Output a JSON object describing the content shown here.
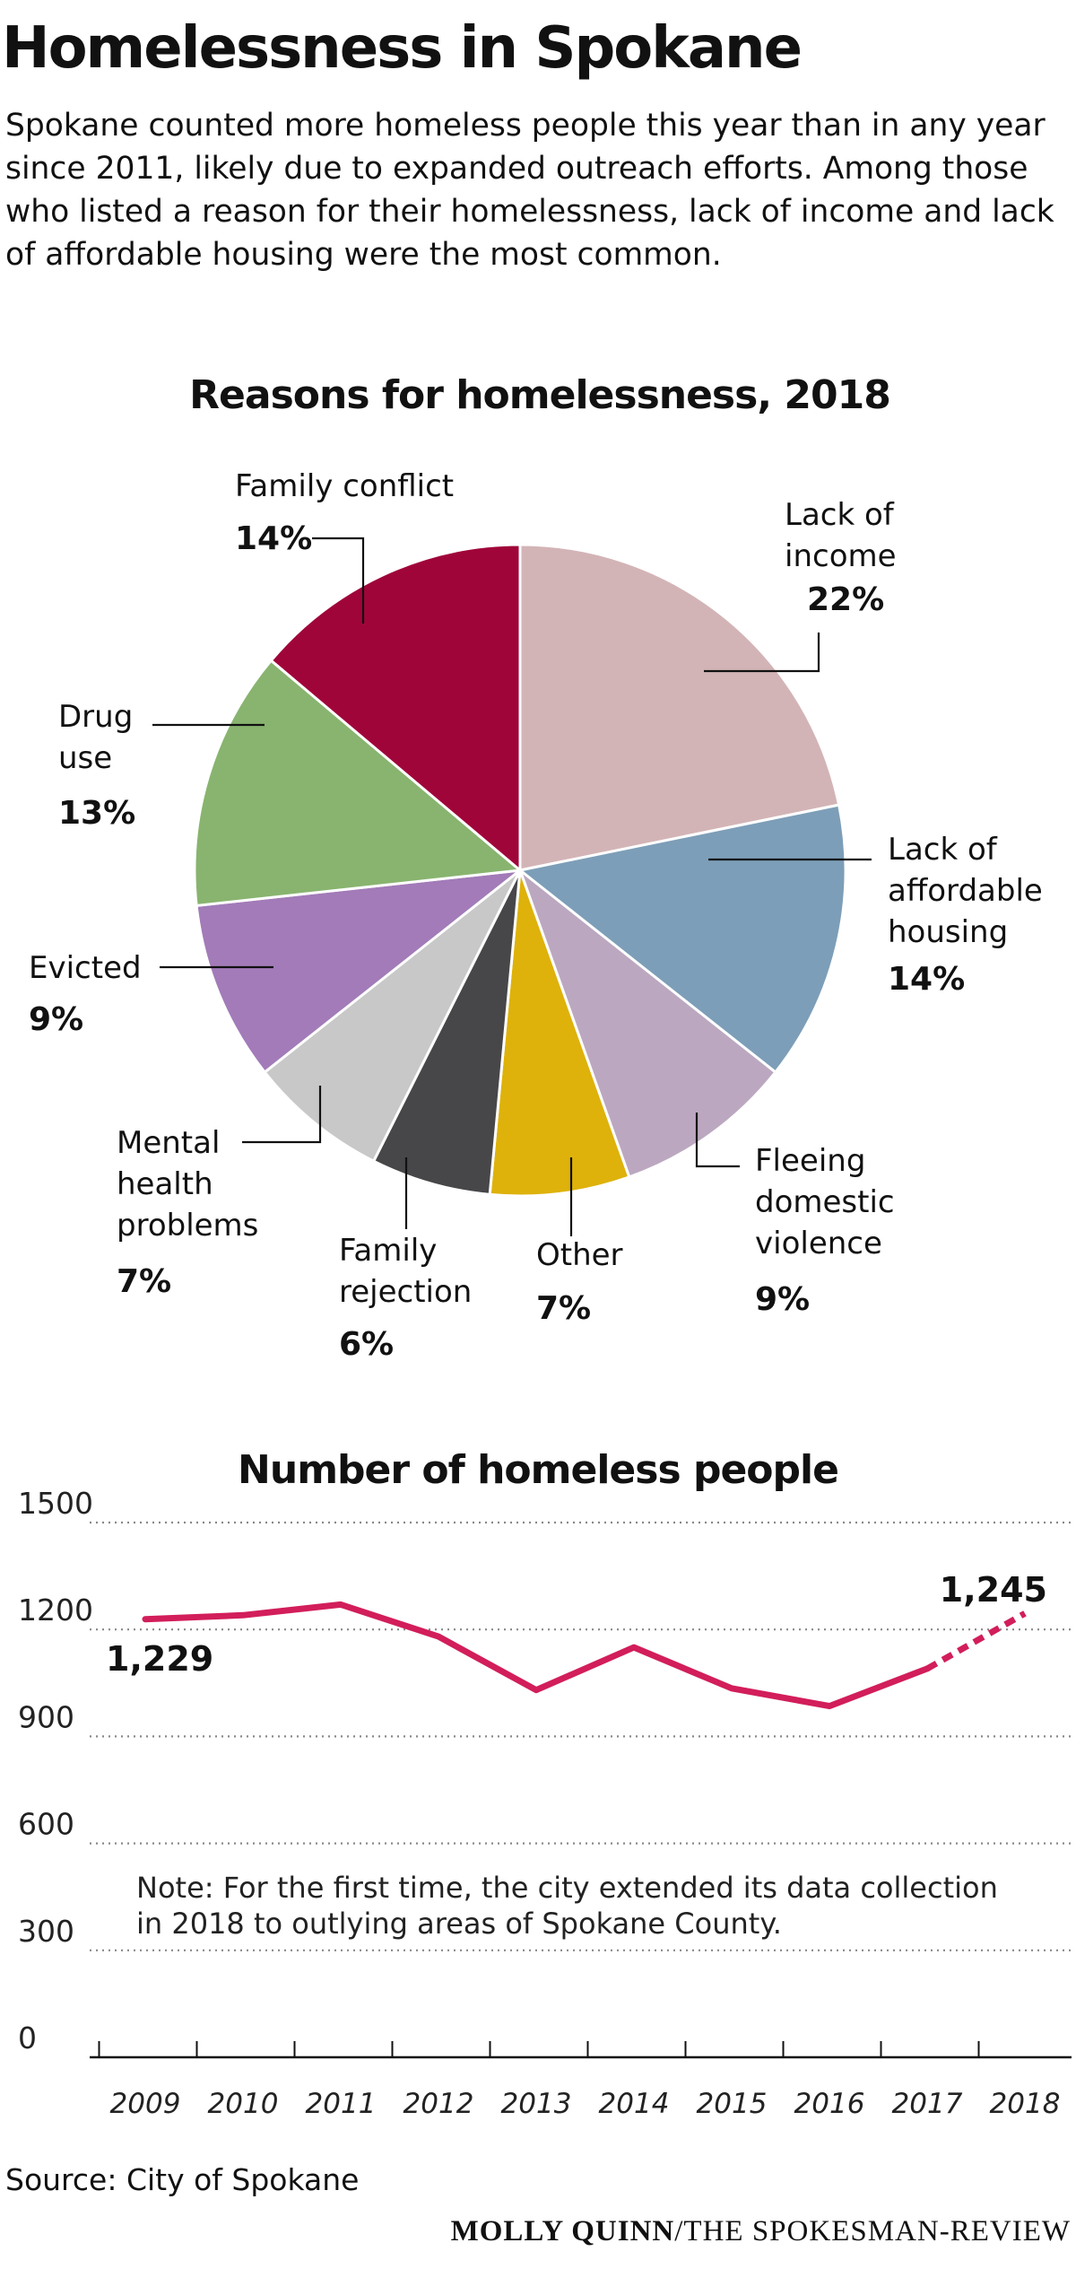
{
  "header": {
    "title": "Homelessness in Spokane",
    "intro": "Spokane counted more homeless people this year than in any year since 2011, likely due to expanded outreach efforts. Among those who listed a reason for their homelessness, lack of income and lack of affordable housing were the most common."
  },
  "chart_data": [
    {
      "type": "pie",
      "title": "Reasons for homelessness, 2018",
      "slices": [
        {
          "label_lines": [
            "Lack of",
            "income"
          ],
          "value": 22,
          "value_label": "22%",
          "color": "#d3b4b6"
        },
        {
          "label_lines": [
            "Lack of",
            "affordable",
            "housing"
          ],
          "value": 14,
          "value_label": "14%",
          "color": "#7d9eb8"
        },
        {
          "label_lines": [
            "Fleeing",
            "domestic",
            "violence"
          ],
          "value": 9,
          "value_label": "9%",
          "color": "#bba8c0"
        },
        {
          "label_lines": [
            "Other"
          ],
          "value": 7,
          "value_label": "7%",
          "color": "#deb20b"
        },
        {
          "label_lines": [
            "Family",
            "rejection"
          ],
          "value": 6,
          "value_label": "6%",
          "color": "#47474a"
        },
        {
          "label_lines": [
            "Mental",
            "health",
            "problems"
          ],
          "value": 7,
          "value_label": "7%",
          "color": "#c8c8c8"
        },
        {
          "label_lines": [
            "Evicted"
          ],
          "value": 9,
          "value_label": "9%",
          "color": "#a27bb8"
        },
        {
          "label_lines": [
            "Drug",
            "use"
          ],
          "value": 13,
          "value_label": "13%",
          "color": "#88b46f"
        },
        {
          "label_lines": [
            "Family conflict"
          ],
          "value": 14,
          "value_label": "14%",
          "color": "#a0053a"
        }
      ]
    },
    {
      "type": "line",
      "title": "Number of homeless people",
      "x": [
        "2009",
        "2010",
        "2011",
        "2012",
        "2013",
        "2014",
        "2015",
        "2016",
        "2017",
        "2018"
      ],
      "points": [
        {
          "x": 2009,
          "y": 1229
        },
        {
          "x": 2010,
          "y": 1240
        },
        {
          "x": 2011,
          "y": 1270
        },
        {
          "x": 2012,
          "y": 1180
        },
        {
          "x": 2013,
          "y": 1030
        },
        {
          "x": 2014,
          "y": 1150
        },
        {
          "x": 2015,
          "y": 1035
        },
        {
          "x": 2016,
          "y": 985
        },
        {
          "x": 2017,
          "y": 1090
        },
        {
          "x": 2018,
          "y": 1245
        }
      ],
      "dashed_from": 2017,
      "yticks": [
        0,
        300,
        600,
        900,
        1200,
        1500
      ],
      "ylim": [
        0,
        1500
      ],
      "grid": true,
      "line_color": "#d21e5a",
      "annotations": {
        "first": "1,229",
        "last": "1,245"
      },
      "note": [
        "Note: For the first time, the city extended its data collection",
        "in 2018 to outlying areas of Spokane County."
      ]
    }
  ],
  "footer": {
    "source": "Source: City of Spokane",
    "credit_name": "MOLLY QUINN",
    "credit_outlet": "/THE SPOKESMAN-REVIEW"
  }
}
